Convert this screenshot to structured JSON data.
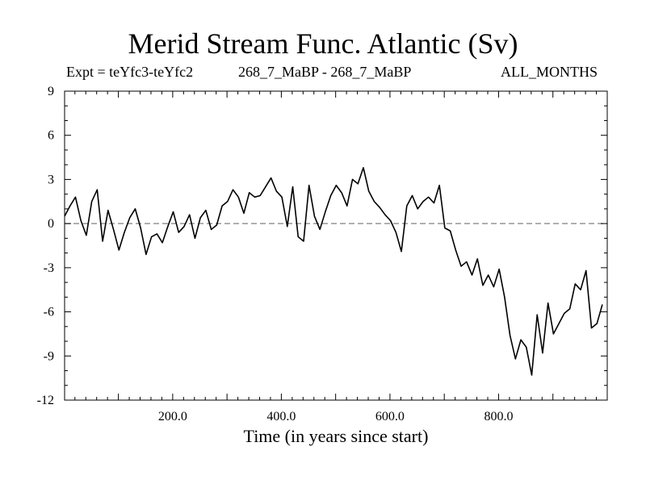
{
  "chart_data": {
    "type": "line",
    "title": "Merid Stream Func. Atlantic (Sv)",
    "subtitle_left": "Expt = teYfc3-teYfc2",
    "subtitle_center": "268_7_MaBP - 268_7_MaBP",
    "subtitle_right": "ALL_MONTHS",
    "xlabel": "Time (in years since start)",
    "ylabel": "",
    "xlim": [
      1,
      1000
    ],
    "ylim": [
      -12,
      9
    ],
    "x_ticks": [
      200,
      400,
      600,
      800
    ],
    "x_tick_labels": [
      "200.0",
      "400.0",
      "600.0",
      "800.0"
    ],
    "y_ticks": [
      9,
      6,
      3,
      0,
      -3,
      -6,
      -9,
      -12
    ],
    "y_tick_labels": [
      "9",
      "6",
      "3",
      "0",
      "-3",
      "-6",
      "-9",
      "-12"
    ],
    "zero_line": {
      "value": 0,
      "style": "dashed",
      "color": "#808080"
    },
    "series": [
      {
        "name": "Merid Stream Func. Atlantic",
        "color": "#000000",
        "x_start": 1,
        "x_step": 10,
        "values": [
          0.5,
          1.2,
          1.8,
          0.2,
          -0.8,
          1.5,
          2.3,
          -1.2,
          0.9,
          -0.4,
          -1.8,
          -0.6,
          0.4,
          1.0,
          -0.3,
          -2.1,
          -0.9,
          -0.7,
          -1.3,
          -0.2,
          0.8,
          -0.6,
          -0.2,
          0.6,
          -1.0,
          0.4,
          0.9,
          -0.4,
          -0.1,
          1.2,
          1.5,
          2.3,
          1.8,
          0.7,
          2.1,
          1.8,
          1.9,
          2.5,
          3.1,
          2.2,
          1.8,
          -0.2,
          2.5,
          -0.9,
          -1.2,
          2.6,
          0.5,
          -0.4,
          0.8,
          1.9,
          2.6,
          2.1,
          1.2,
          3.0,
          2.7,
          3.8,
          2.2,
          1.5,
          1.1,
          0.6,
          0.2,
          -0.6,
          -1.9,
          1.2,
          1.9,
          1.0,
          1.5,
          1.8,
          1.4,
          2.6,
          -0.3,
          -0.5,
          -1.8,
          -2.9,
          -2.6,
          -3.5,
          -2.4,
          -4.2,
          -3.5,
          -4.3,
          -3.1,
          -5.0,
          -7.6,
          -9.2,
          -7.9,
          -8.4,
          -10.3,
          -6.2,
          -8.8,
          -5.4,
          -7.5,
          -6.8,
          -6.1,
          -5.8,
          -4.1,
          -4.5,
          -3.2,
          -7.1,
          -6.8,
          -5.5
        ]
      }
    ]
  }
}
